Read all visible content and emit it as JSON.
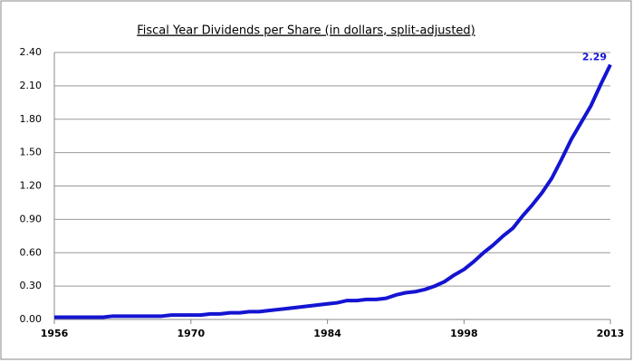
{
  "chart_data": {
    "type": "line",
    "title": "Fiscal Year Dividends per Share (in dollars, split-adjusted)",
    "x": [
      1956,
      1957,
      1958,
      1959,
      1960,
      1961,
      1962,
      1963,
      1964,
      1965,
      1966,
      1967,
      1968,
      1969,
      1970,
      1971,
      1972,
      1973,
      1974,
      1975,
      1976,
      1977,
      1978,
      1979,
      1980,
      1981,
      1982,
      1983,
      1984,
      1985,
      1986,
      1987,
      1988,
      1989,
      1990,
      1991,
      1992,
      1993,
      1994,
      1995,
      1996,
      1997,
      1998,
      1999,
      2000,
      2001,
      2002,
      2003,
      2004,
      2005,
      2006,
      2007,
      2008,
      2009,
      2010,
      2011,
      2012,
      2013
    ],
    "series": [
      {
        "name": "Dividends per Share",
        "color": "#1414d2",
        "values": [
          0.02,
          0.02,
          0.02,
          0.02,
          0.02,
          0.02,
          0.03,
          0.03,
          0.03,
          0.03,
          0.03,
          0.03,
          0.04,
          0.04,
          0.04,
          0.04,
          0.05,
          0.05,
          0.06,
          0.06,
          0.07,
          0.07,
          0.08,
          0.09,
          0.1,
          0.11,
          0.12,
          0.13,
          0.14,
          0.15,
          0.17,
          0.17,
          0.18,
          0.18,
          0.19,
          0.22,
          0.24,
          0.25,
          0.27,
          0.3,
          0.34,
          0.4,
          0.45,
          0.52,
          0.6,
          0.67,
          0.75,
          0.82,
          0.93,
          1.03,
          1.14,
          1.27,
          1.44,
          1.62,
          1.77,
          1.92,
          2.11,
          2.29
        ],
        "value_labels": [
          null,
          null,
          null,
          null,
          null,
          null,
          null,
          null,
          null,
          null,
          null,
          null,
          null,
          null,
          null,
          null,
          null,
          null,
          null,
          null,
          null,
          null,
          null,
          null,
          null,
          null,
          null,
          null,
          null,
          null,
          null,
          null,
          null,
          null,
          null,
          null,
          null,
          null,
          null,
          null,
          null,
          null,
          null,
          null,
          null,
          null,
          null,
          null,
          null,
          null,
          null,
          null,
          null,
          null,
          null,
          null,
          null,
          "2.29"
        ]
      }
    ],
    "xlim": [
      1956,
      2013
    ],
    "xticks": [
      1956,
      1970,
      1984,
      1998,
      2013
    ],
    "ylim": [
      0,
      2.4
    ],
    "yticks": [
      {
        "value": 0,
        "label": "0.00"
      },
      {
        "value": 0.3,
        "label": "0.30"
      },
      {
        "value": 0.6,
        "label": "0.60"
      },
      {
        "value": 0.9,
        "label": "0.90"
      },
      {
        "value": 1.2,
        "label": "1.20"
      },
      {
        "value": 1.5,
        "label": "1.50"
      },
      {
        "value": 1.8,
        "label": "1.80"
      },
      {
        "value": 2.1,
        "label": "2.10"
      },
      {
        "value": 2.4,
        "label": "2.40"
      }
    ],
    "grid": true
  }
}
